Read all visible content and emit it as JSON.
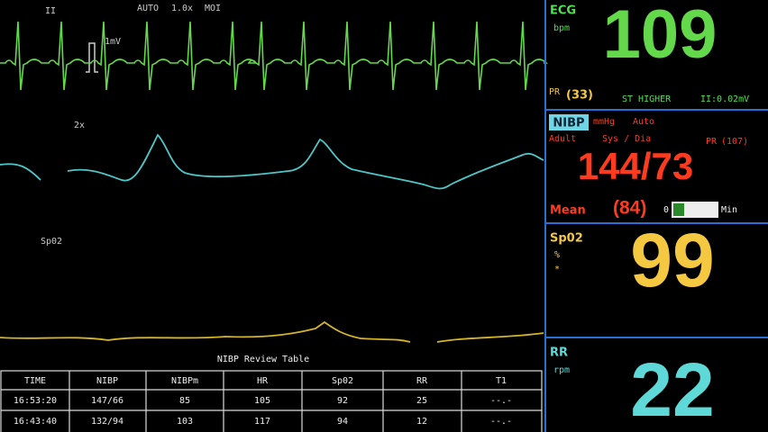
{
  "waveforms": {
    "ecg_lead": "II",
    "mode": "AUTO",
    "gain": "1.0x",
    "filter": "MOI",
    "scale": "1mV",
    "resp_gain": "2x",
    "spo2_label": "Sp02"
  },
  "ecg": {
    "label": "ECG",
    "unit": "bpm",
    "value": "109",
    "pr_label": "PR",
    "pr_value": "(33)",
    "st_status": "ST HIGHER",
    "st_value": "II:0.02mV"
  },
  "nibp": {
    "label": "NIBP",
    "unit": "mmHg",
    "mode": "Auto",
    "patient": "Adult",
    "format": "Sys / Dia",
    "pr_label": "PR",
    "pr_value": "(107)",
    "value": "144/73",
    "mean_label": "Mean",
    "mean_value": "(84)",
    "timer_start": "0",
    "timer_unit": "Min"
  },
  "spo2": {
    "label": "Sp02",
    "unit": "%",
    "marker": "*",
    "value": "99"
  },
  "rr": {
    "label": "RR",
    "unit": "rpm",
    "value": "22"
  },
  "table": {
    "title": "NIBP Review Table",
    "header": [
      "TIME",
      "NIBP",
      "NIBPm",
      "HR",
      "Sp02",
      "RR",
      "T1"
    ],
    "rows": [
      [
        "16:53:20",
        "147/66",
        "85",
        "105",
        "92",
        "25",
        "--.-"
      ],
      [
        "16:43:40",
        "132/94",
        "103",
        "117",
        "94",
        "12",
        "--.-"
      ]
    ]
  }
}
